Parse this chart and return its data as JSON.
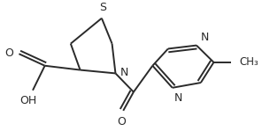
{
  "background_color": "#ffffff",
  "line_color": "#2a2a2a",
  "line_width": 1.4,
  "figsize": [
    2.96,
    1.49
  ],
  "dpi": 100,
  "xlim": [
    0,
    296
  ],
  "ylim": [
    0,
    149
  ]
}
